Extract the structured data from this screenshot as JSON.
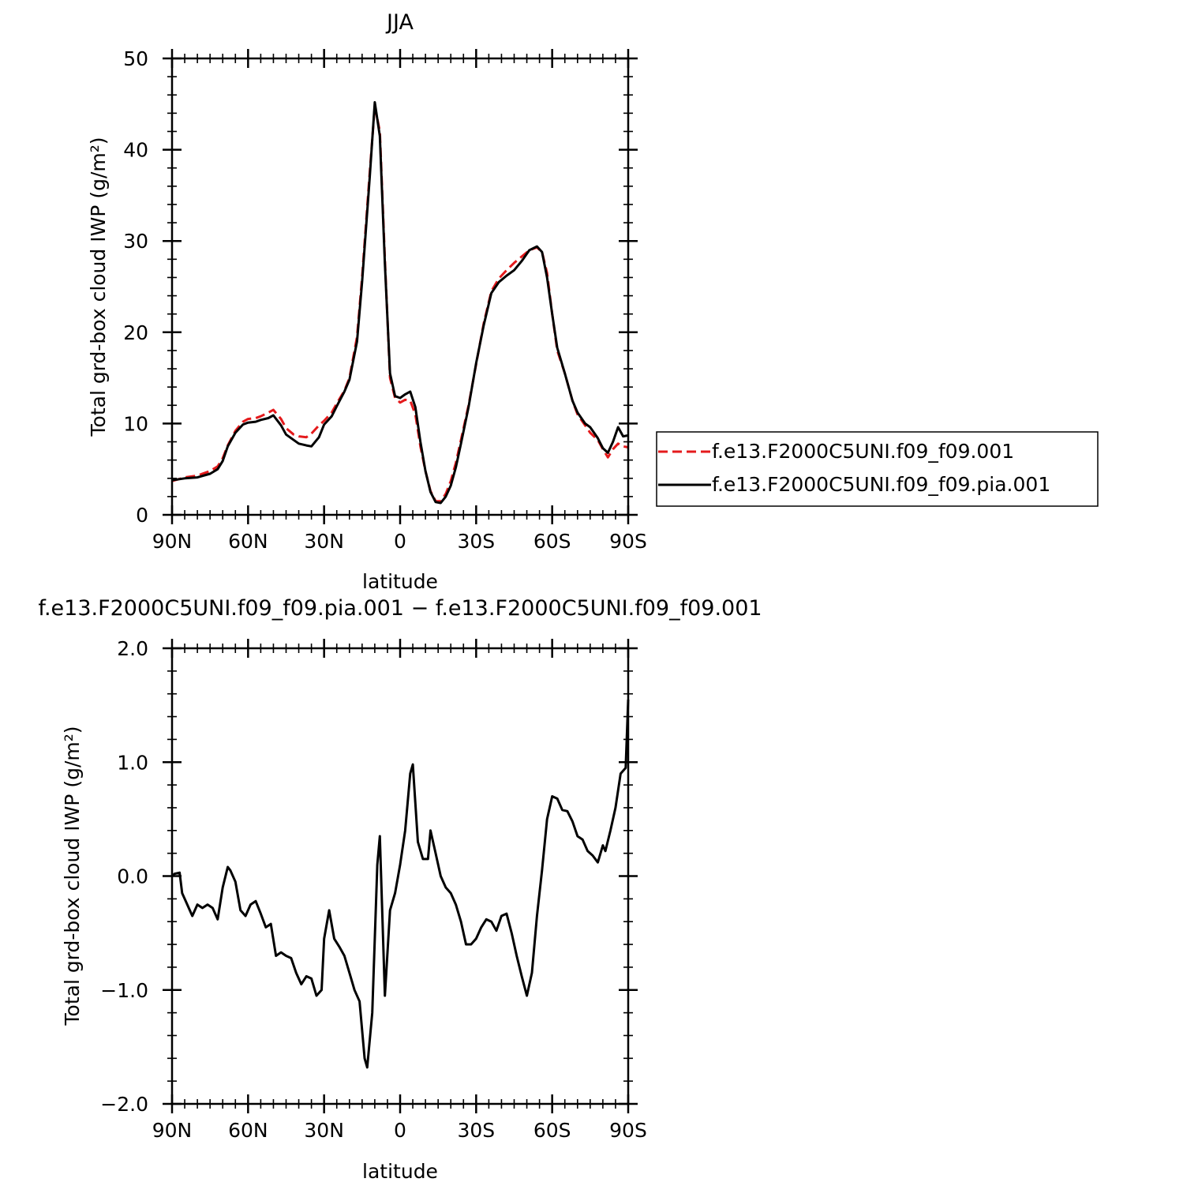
{
  "chart_data": [
    {
      "type": "line",
      "title": "JJA",
      "xlabel": "latitude",
      "ylabel": "Total grd-box cloud IWP (g/m²)",
      "xlim": [
        90,
        -90
      ],
      "ylim": [
        0,
        50
      ],
      "x_tick_values": [
        90,
        60,
        30,
        0,
        -30,
        -60,
        -90
      ],
      "x_tick_labels": [
        "90N",
        "60N",
        "30N",
        "0",
        "30S",
        "60S",
        "90S"
      ],
      "y_tick_values": [
        0,
        10,
        20,
        30,
        40,
        50
      ],
      "y_tick_labels": [
        "0",
        "10",
        "20",
        "30",
        "40",
        "50"
      ],
      "grid": false,
      "legend": "right",
      "series": [
        {
          "name": "f.e13.F2000C5UNI.f09_f09.001",
          "color": "#e41a1c",
          "dash": "dashed",
          "x": [
            90,
            85,
            80,
            75,
            72,
            70,
            68,
            65,
            62,
            60,
            57,
            55,
            52,
            50,
            47,
            45,
            42,
            40,
            37,
            35,
            32,
            30,
            27,
            25,
            22,
            20,
            17,
            15,
            12,
            10,
            8,
            6,
            4,
            2,
            0,
            -2,
            -4,
            -6,
            -8,
            -10,
            -12,
            -14,
            -16,
            -18,
            -20,
            -22,
            -24,
            -27,
            -30,
            -33,
            -36,
            -39,
            -42,
            -45,
            -48,
            -51,
            -54,
            -56,
            -58,
            -60,
            -62,
            -65,
            -68,
            -70,
            -73,
            -75,
            -78,
            -80,
            -82,
            -84,
            -86,
            -88,
            -90
          ],
          "y": [
            3.7,
            4.1,
            4.3,
            4.8,
            5.3,
            6.2,
            7.6,
            9.2,
            10.2,
            10.5,
            10.6,
            10.8,
            11.2,
            11.5,
            10.5,
            9.5,
            8.8,
            8.6,
            8.5,
            8.9,
            9.8,
            10.3,
            11.2,
            12.2,
            13.6,
            15.0,
            19.5,
            26.0,
            37.5,
            44.8,
            42.0,
            28.0,
            15.0,
            12.8,
            12.3,
            12.6,
            12.5,
            11.0,
            7.5,
            4.8,
            2.6,
            1.5,
            1.5,
            2.3,
            3.7,
            5.7,
            8.2,
            12.0,
            16.5,
            21.0,
            24.5,
            25.9,
            26.8,
            27.6,
            28.3,
            29.0,
            29.3,
            28.8,
            26.5,
            22.0,
            18.0,
            15.5,
            12.5,
            11.0,
            9.8,
            9.0,
            8.2,
            7.2,
            6.3,
            7.2,
            7.8,
            7.5,
            7.4
          ]
        },
        {
          "name": "f.e13.F2000C5UNI.f09_f09.pia.001",
          "color": "#000000",
          "dash": "solid",
          "x": [
            90,
            85,
            80,
            75,
            72,
            70,
            68,
            65,
            62,
            60,
            57,
            55,
            52,
            50,
            47,
            45,
            42,
            40,
            37,
            35,
            32,
            30,
            27,
            25,
            22,
            20,
            17,
            15,
            12,
            10,
            8,
            6,
            4,
            2,
            0,
            -2,
            -4,
            -6,
            -8,
            -10,
            -12,
            -14,
            -16,
            -18,
            -20,
            -22,
            -24,
            -27,
            -30,
            -33,
            -36,
            -39,
            -42,
            -45,
            -48,
            -51,
            -54,
            -56,
            -58,
            -60,
            -62,
            -65,
            -68,
            -70,
            -73,
            -75,
            -78,
            -80,
            -82,
            -84,
            -86,
            -88,
            -90
          ],
          "y": [
            3.8,
            4.0,
            4.1,
            4.5,
            5.0,
            5.9,
            7.5,
            9.0,
            9.9,
            10.1,
            10.2,
            10.4,
            10.6,
            10.9,
            9.8,
            8.8,
            8.2,
            7.8,
            7.6,
            7.5,
            8.5,
            9.9,
            10.8,
            11.9,
            13.5,
            14.8,
            19.0,
            25.5,
            37.0,
            45.2,
            41.5,
            27.5,
            15.5,
            13.0,
            12.8,
            13.2,
            13.5,
            11.8,
            8.0,
            4.8,
            2.5,
            1.4,
            1.3,
            2.0,
            3.2,
            5.2,
            7.8,
            11.8,
            16.6,
            20.8,
            24.3,
            25.5,
            26.2,
            26.8,
            27.8,
            29.0,
            29.4,
            28.8,
            26.0,
            22.0,
            18.3,
            15.5,
            12.5,
            11.2,
            10.0,
            9.6,
            8.4,
            7.3,
            6.8,
            8.0,
            9.6,
            8.6,
            8.7
          ]
        }
      ]
    },
    {
      "type": "line",
      "title": "f.e13.F2000C5UNI.f09_f09.pia.001 − f.e13.F2000C5UNI.f09_f09.001",
      "xlabel": "latitude",
      "ylabel": "Total grd-box cloud IWP (g/m²)",
      "xlim": [
        90,
        -90
      ],
      "ylim": [
        -2.0,
        2.0
      ],
      "x_tick_values": [
        90,
        60,
        30,
        0,
        -30,
        -60,
        -90
      ],
      "x_tick_labels": [
        "90N",
        "60N",
        "30N",
        "0",
        "30S",
        "60S",
        "90S"
      ],
      "y_tick_values": [
        -2.0,
        -1.0,
        0.0,
        1.0,
        2.0
      ],
      "y_tick_labels": [
        "−2.0",
        "−1.0",
        "0.0",
        "1.0",
        "2.0"
      ],
      "grid": false,
      "series": [
        {
          "color": "#000000",
          "dash": "solid",
          "x": [
            90,
            89,
            87,
            86,
            84,
            82,
            80,
            78,
            76,
            74,
            72,
            70,
            68,
            67,
            65,
            63,
            61,
            59,
            57,
            55,
            53,
            51,
            49,
            47,
            45,
            43,
            41,
            39,
            37,
            35,
            33,
            31,
            30,
            28,
            26,
            24,
            22,
            20,
            18,
            16,
            14,
            13,
            11,
            9,
            8,
            6,
            4,
            2,
            0,
            -2,
            -4,
            -5,
            -7,
            -9,
            -11,
            -12,
            -14,
            -16,
            -18,
            -20,
            -22,
            -24,
            -26,
            -28,
            -30,
            -32,
            -34,
            -36,
            -38,
            -40,
            -42,
            -44,
            -46,
            -48,
            -50,
            -52,
            -54,
            -56,
            -58,
            -60,
            -62,
            -64,
            -66,
            -68,
            -70,
            -72,
            -74,
            -76,
            -78,
            -80,
            -81,
            -83,
            -85,
            -87,
            -89,
            -90
          ],
          "y": [
            0.0,
            0.02,
            0.03,
            -0.15,
            -0.25,
            -0.35,
            -0.25,
            -0.28,
            -0.25,
            -0.28,
            -0.38,
            -0.1,
            0.08,
            0.05,
            -0.05,
            -0.3,
            -0.35,
            -0.25,
            -0.22,
            -0.33,
            -0.45,
            -0.42,
            -0.7,
            -0.67,
            -0.7,
            -0.72,
            -0.85,
            -0.95,
            -0.88,
            -0.9,
            -1.05,
            -1.0,
            -0.55,
            -0.3,
            -0.55,
            -0.62,
            -0.7,
            -0.85,
            -1.0,
            -1.1,
            -1.6,
            -1.68,
            -1.2,
            0.1,
            0.35,
            -1.05,
            -0.3,
            -0.15,
            0.1,
            0.4,
            0.9,
            0.98,
            0.3,
            0.15,
            0.15,
            0.4,
            0.2,
            0.0,
            -0.1,
            -0.15,
            -0.25,
            -0.4,
            -0.6,
            -0.6,
            -0.55,
            -0.45,
            -0.38,
            -0.4,
            -0.48,
            -0.35,
            -0.33,
            -0.5,
            -0.7,
            -0.88,
            -1.05,
            -0.85,
            -0.35,
            0.05,
            0.5,
            0.7,
            0.68,
            0.58,
            0.57,
            0.48,
            0.35,
            0.32,
            0.22,
            0.18,
            0.12,
            0.27,
            0.22,
            0.4,
            0.6,
            0.9,
            0.95,
            1.55
          ]
        }
      ]
    }
  ]
}
